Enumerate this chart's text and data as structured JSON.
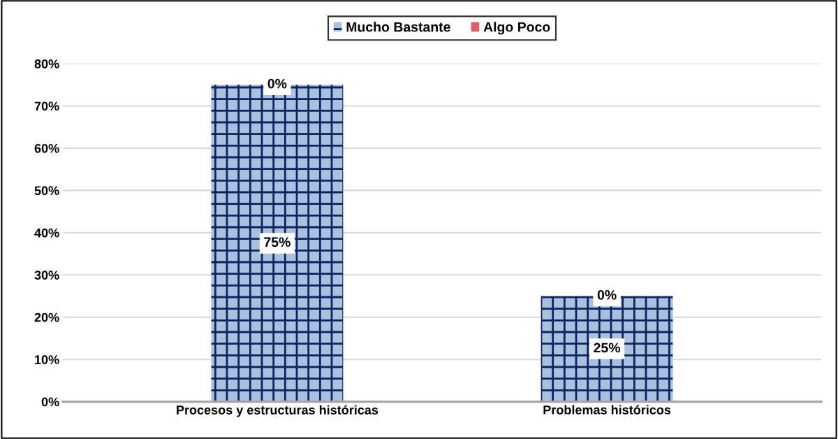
{
  "chart_data": {
    "type": "bar",
    "stacked": true,
    "categories": [
      "Procesos y estructuras históricas",
      "Problemas históricos"
    ],
    "series": [
      {
        "name": "Mucho Bastante",
        "color": "#a9c0df",
        "values": [
          75,
          25
        ],
        "value_labels": [
          "75%",
          "25%"
        ]
      },
      {
        "name": "Algo Poco",
        "color": "#e06060",
        "values": [
          0,
          0
        ],
        "value_labels": [
          "0%",
          "0%"
        ]
      }
    ],
    "ylim": [
      0,
      80
    ],
    "yticks": [
      {
        "value": 0,
        "label": "0%"
      },
      {
        "value": 10,
        "label": "10%"
      },
      {
        "value": 20,
        "label": "20%"
      },
      {
        "value": 30,
        "label": "30%"
      },
      {
        "value": 40,
        "label": "40%"
      },
      {
        "value": 50,
        "label": "50%"
      },
      {
        "value": 60,
        "label": "60%"
      },
      {
        "value": 70,
        "label": "70%"
      },
      {
        "value": 80,
        "label": "80%"
      }
    ],
    "grid": "y",
    "legend": "top"
  }
}
